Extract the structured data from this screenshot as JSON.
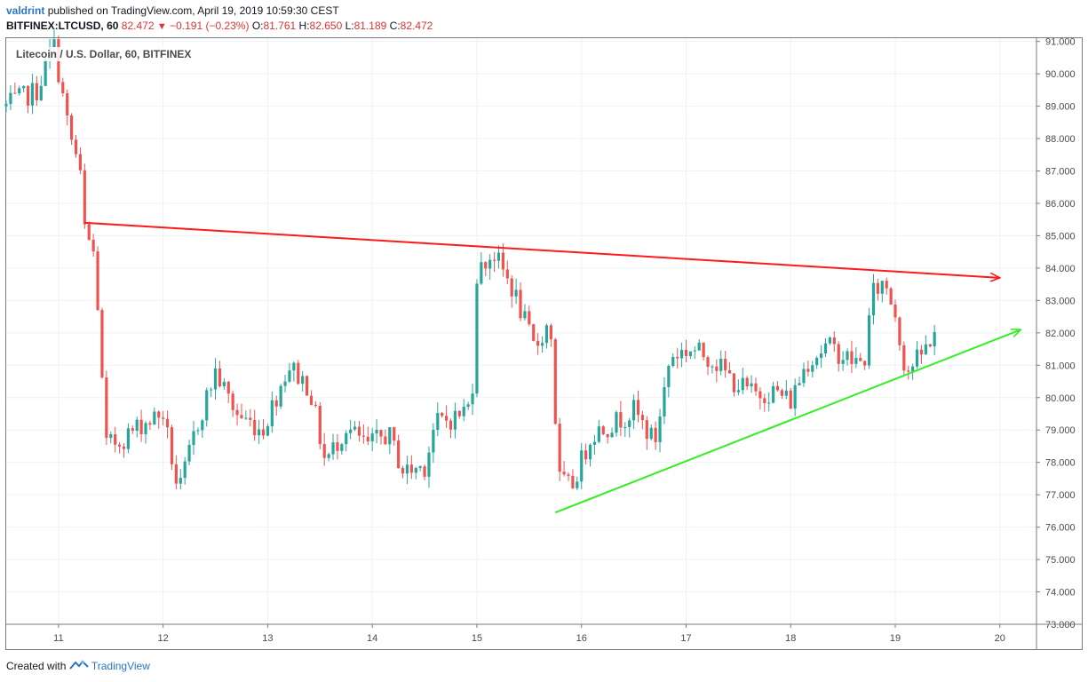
{
  "header": {
    "author": "valdrint",
    "published_text": "published on TradingView.com, April 19, 2019 10:59:30 CEST",
    "symbol": "BITFINEX:LTCUSD, 60",
    "last": "82.472",
    "change_arrow": "▼",
    "change": "−0.191 (−0.23%)",
    "o_label": "O:",
    "o_value": "81.761",
    "h_label": "H:",
    "h_value": "82.650",
    "l_label": "L:",
    "l_value": "81.189",
    "c_label": "C:",
    "c_value": "82.472"
  },
  "legend": "Litecoin / U.S. Dollar, 60, BITFINEX",
  "footer": {
    "created_with": "Created with",
    "brand": "TradingView",
    "icon": "tradingview-logo-icon"
  },
  "colors": {
    "up": "#26a69a",
    "down": "#ef5350",
    "resistance": "#ff1a1a",
    "support": "#33ee22",
    "grid": "#eef2f6",
    "axis": "#787b86"
  },
  "chart_data": {
    "type": "candlestick",
    "title": "Litecoin / U.S. Dollar, 60, BITFINEX",
    "x_unit": "day of April 2019",
    "xlim": [
      10.5,
      20.35
    ],
    "ylim": [
      73.0,
      91.1
    ],
    "grid": true,
    "y_ticks": [
      "73.000",
      "74.000",
      "75.000",
      "76.000",
      "77.000",
      "78.000",
      "79.000",
      "80.000",
      "81.000",
      "82.000",
      "83.000",
      "84.000",
      "85.000",
      "86.000",
      "87.000",
      "88.000",
      "89.000",
      "90.000",
      "91.000"
    ],
    "x_ticks": [
      "11",
      "12",
      "13",
      "14",
      "15",
      "16",
      "17",
      "18",
      "19",
      "20"
    ],
    "x_tick_values": [
      11,
      12,
      13,
      14,
      15,
      16,
      17,
      18,
      19,
      20
    ],
    "anchors": [
      [
        10.5,
        89.0
      ],
      [
        10.8,
        89.5
      ],
      [
        10.95,
        91.0
      ],
      [
        11.1,
        88.2
      ],
      [
        11.2,
        87.1
      ],
      [
        11.25,
        85.2
      ],
      [
        11.35,
        84.3
      ],
      [
        11.45,
        78.5
      ],
      [
        11.6,
        78.7
      ],
      [
        11.8,
        79.2
      ],
      [
        12.0,
        79.5
      ],
      [
        12.15,
        77.0
      ],
      [
        12.3,
        78.9
      ],
      [
        12.5,
        80.8
      ],
      [
        12.7,
        79.5
      ],
      [
        12.95,
        79.0
      ],
      [
        13.2,
        81.0
      ],
      [
        13.4,
        80.3
      ],
      [
        13.55,
        78.0
      ],
      [
        13.75,
        79.1
      ],
      [
        13.95,
        78.5
      ],
      [
        14.15,
        78.9
      ],
      [
        14.3,
        77.7
      ],
      [
        14.5,
        77.9
      ],
      [
        14.6,
        79.2
      ],
      [
        14.8,
        79.4
      ],
      [
        14.95,
        79.8
      ],
      [
        15.0,
        83.8
      ],
      [
        15.15,
        84.5
      ],
      [
        15.35,
        83.3
      ],
      [
        15.55,
        81.5
      ],
      [
        15.7,
        82.4
      ],
      [
        15.78,
        77.5
      ],
      [
        15.9,
        77.2
      ],
      [
        16.1,
        78.9
      ],
      [
        16.3,
        79.2
      ],
      [
        16.5,
        79.6
      ],
      [
        16.7,
        78.6
      ],
      [
        16.85,
        81.3
      ],
      [
        17.05,
        81.5
      ],
      [
        17.25,
        81.2
      ],
      [
        17.45,
        80.5
      ],
      [
        17.65,
        80.1
      ],
      [
        17.85,
        80.2
      ],
      [
        18.0,
        79.9
      ],
      [
        18.15,
        81.1
      ],
      [
        18.35,
        81.6
      ],
      [
        18.55,
        81.2
      ],
      [
        18.7,
        81.0
      ],
      [
        18.78,
        83.2
      ],
      [
        18.9,
        83.6
      ],
      [
        19.0,
        82.6
      ],
      [
        19.1,
        80.8
      ],
      [
        19.25,
        81.3
      ],
      [
        19.4,
        82.2
      ]
    ],
    "annotations": [
      {
        "type": "trendline",
        "name": "resistance",
        "color": "#ff1a1a",
        "from": [
          11.25,
          85.4
        ],
        "to": [
          20.0,
          83.7
        ],
        "arrow": true
      },
      {
        "type": "trendline",
        "name": "support",
        "color": "#33ee22",
        "from": [
          15.75,
          76.45
        ],
        "to": [
          20.2,
          82.1
        ],
        "arrow": true
      }
    ]
  }
}
